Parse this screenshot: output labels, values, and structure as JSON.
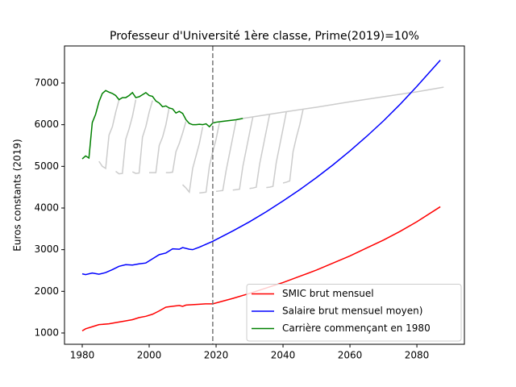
{
  "chart_data": {
    "type": "line",
    "title": "Professeur d'Université 1ère classe, Prime(2019)=10%",
    "y_label": "Euros constants (2019)",
    "xlim": [
      1974.7,
      2094.2
    ],
    "ylim": [
      729,
      7890
    ],
    "xticks": [
      1980,
      2000,
      2020,
      2040,
      2060,
      2080
    ],
    "yticks": [
      1000,
      2000,
      3000,
      4000,
      5000,
      6000,
      7000
    ],
    "vline": 2019,
    "vline_color": "#777777",
    "legend": "lower right",
    "series": [
      {
        "name": "SMIC brut mensuel",
        "color": "#ff0000",
        "x": [
          1980,
          1981,
          1983,
          1985,
          1988,
          1990,
          1993,
          1995,
          1997,
          1999,
          2001,
          2003,
          2005,
          2007,
          2009,
          2010,
          2011,
          2013,
          2015,
          2017,
          2019,
          2025,
          2030,
          2035,
          2040,
          2045,
          2050,
          2055,
          2060,
          2065,
          2070,
          2075,
          2080,
          2087
        ],
        "values": [
          1050,
          1100,
          1150,
          1200,
          1220,
          1250,
          1290,
          1320,
          1370,
          1400,
          1450,
          1530,
          1620,
          1640,
          1660,
          1640,
          1670,
          1680,
          1690,
          1700,
          1700,
          1830,
          1950,
          2080,
          2210,
          2360,
          2510,
          2680,
          2850,
          3040,
          3230,
          3440,
          3670,
          4030
        ]
      },
      {
        "name": "Salaire brut mensuel moyen)",
        "color": "#0000ff",
        "x": [
          1980,
          1981,
          1983,
          1985,
          1987,
          1989,
          1991,
          1993,
          1995,
          1997,
          1999,
          2001,
          2003,
          2005,
          2007,
          2009,
          2010,
          2012,
          2013,
          2015,
          2017,
          2019,
          2025,
          2030,
          2035,
          2040,
          2045,
          2050,
          2055,
          2060,
          2065,
          2070,
          2075,
          2080,
          2087
        ],
        "values": [
          2420,
          2400,
          2440,
          2410,
          2450,
          2520,
          2600,
          2640,
          2630,
          2660,
          2680,
          2780,
          2880,
          2920,
          3020,
          3010,
          3050,
          3010,
          3000,
          3060,
          3130,
          3200,
          3450,
          3670,
          3910,
          4170,
          4440,
          4730,
          5040,
          5370,
          5720,
          6090,
          6490,
          6920,
          7550
        ]
      },
      {
        "name": "Carrière commençant en 1980",
        "color": "#008000",
        "x": [
          1980,
          1981,
          1982,
          1983,
          1984,
          1985,
          1986,
          1987,
          1988,
          1989,
          1990,
          1991,
          1992,
          1993,
          1994,
          1995,
          1996,
          1997,
          1998,
          1999,
          2000,
          2001,
          2002,
          2003,
          2004,
          2005,
          2006,
          2007,
          2008,
          2009,
          2010,
          2011,
          2012,
          2013,
          2014,
          2015,
          2016,
          2017,
          2018,
          2019,
          2020,
          2022,
          2024,
          2026,
          2028
        ],
        "values": [
          5180,
          5250,
          5200,
          6050,
          6250,
          6550,
          6750,
          6820,
          6780,
          6750,
          6700,
          6600,
          6650,
          6650,
          6700,
          6770,
          6650,
          6670,
          6720,
          6770,
          6700,
          6680,
          6570,
          6520,
          6430,
          6450,
          6400,
          6380,
          6280,
          6320,
          6270,
          6120,
          6030,
          6000,
          6000,
          6010,
          6000,
          6020,
          5950,
          6040,
          6060,
          6080,
          6100,
          6120,
          6150
        ]
      },
      {
        "color": "#cccccc",
        "x": [
          2028,
          2040,
          2050,
          2060,
          2070,
          2080,
          2088
        ],
        "values": [
          6150,
          6300,
          6420,
          6550,
          6670,
          6790,
          6900
        ]
      },
      {
        "color": "#cccccc",
        "x": [
          1985,
          1986,
          1987,
          1988,
          1989,
          1990,
          1991
        ],
        "values": [
          5120,
          5000,
          4950,
          5750,
          5950,
          6300,
          6600
        ]
      },
      {
        "color": "#cccccc",
        "x": [
          1990,
          1991,
          1992,
          1993,
          1994,
          1995,
          1996
        ],
        "values": [
          4880,
          4820,
          4830,
          5650,
          5900,
          6200,
          6600
        ]
      },
      {
        "color": "#cccccc",
        "x": [
          1995,
          1996,
          1997,
          1998,
          1999,
          2000,
          2001
        ],
        "values": [
          4870,
          4830,
          4840,
          5700,
          5950,
          6300,
          6580
        ]
      },
      {
        "color": "#cccccc",
        "x": [
          2000,
          2001,
          2002,
          2003,
          2004,
          2005,
          2006
        ],
        "values": [
          4850,
          4850,
          4850,
          5500,
          5700,
          6000,
          6420
        ]
      },
      {
        "color": "#cccccc",
        "x": [
          2005,
          2006,
          2007,
          2008,
          2009,
          2010,
          2011
        ],
        "values": [
          4850,
          4850,
          4860,
          5350,
          5550,
          5800,
          6080
        ]
      },
      {
        "color": "#cccccc",
        "x": [
          2010,
          2011,
          2012,
          2013,
          2014,
          2015,
          2016
        ],
        "values": [
          4560,
          4480,
          4380,
          4950,
          5250,
          5550,
          5950
        ]
      },
      {
        "color": "#cccccc",
        "x": [
          2015,
          2016,
          2017,
          2018,
          2019,
          2020,
          2021
        ],
        "values": [
          4360,
          4370,
          4380,
          5000,
          5350,
          5650,
          6050
        ]
      },
      {
        "color": "#cccccc",
        "x": [
          2020,
          2021,
          2022,
          2023,
          2024,
          2025,
          2026
        ],
        "values": [
          4400,
          4410,
          4420,
          4900,
          5300,
          5700,
          6110
        ]
      },
      {
        "color": "#cccccc",
        "x": [
          2025,
          2026,
          2027,
          2028,
          2029,
          2030,
          2031
        ],
        "values": [
          4430,
          4440,
          4450,
          5000,
          5400,
          5800,
          6190
        ]
      },
      {
        "color": "#cccccc",
        "x": [
          2030,
          2031,
          2032,
          2033,
          2034,
          2035,
          2036
        ],
        "values": [
          4470,
          4480,
          4500,
          5050,
          5450,
          5850,
          6250
        ]
      },
      {
        "color": "#cccccc",
        "x": [
          2035,
          2036,
          2037,
          2038,
          2039,
          2040,
          2041
        ],
        "values": [
          4490,
          4500,
          4520,
          5100,
          5500,
          5900,
          6310
        ]
      },
      {
        "color": "#cccccc",
        "x": [
          2040,
          2041,
          2042,
          2043,
          2044,
          2045,
          2046
        ],
        "values": [
          4600,
          4620,
          4650,
          5350,
          5700,
          6000,
          6370
        ]
      }
    ]
  }
}
